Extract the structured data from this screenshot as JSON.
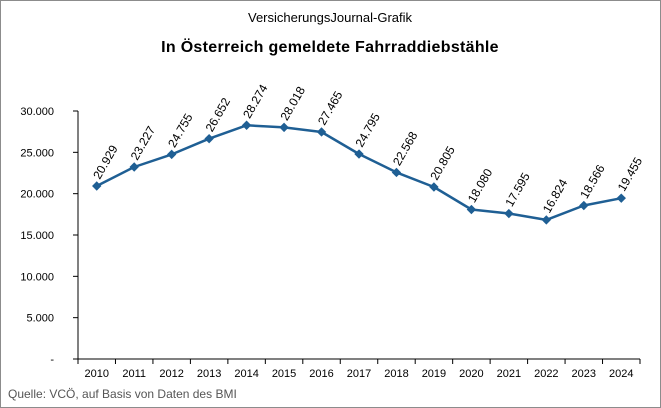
{
  "supertitle": "VersicherungsJournal-Grafik",
  "source": "Quelle: VCÖ, auf Basis von Daten des BMI",
  "colors": {
    "line": "#1f5f94",
    "axis": "#000000",
    "frame": "#8c8c8c"
  },
  "chart_data": {
    "type": "line",
    "title": "In Österreich gemeldete  Fahrraddiebstähle",
    "xlabel": "",
    "ylabel": "",
    "grid": false,
    "legend": "none",
    "ylim": [
      0,
      30000
    ],
    "y_ticks": [
      0,
      5000,
      10000,
      15000,
      20000,
      25000,
      30000
    ],
    "y_tick_labels": [
      "-",
      "5.000",
      "10.000",
      "15.000",
      "20.000",
      "25.000",
      "30.000"
    ],
    "categories": [
      "2010",
      "2011",
      "2012",
      "2013",
      "2014",
      "2015",
      "2016",
      "2017",
      "2018",
      "2019",
      "2020",
      "2021",
      "2022",
      "2023",
      "2024"
    ],
    "values": [
      20929,
      23227,
      24755,
      26652,
      28274,
      28018,
      27465,
      24795,
      22568,
      20805,
      18080,
      17595,
      16824,
      18566,
      19455
    ],
    "data_labels": [
      "20.929",
      "23.227",
      "24.755",
      "26.652",
      "28.274",
      "28.018",
      "27.465",
      "24.795",
      "22.568",
      "20.805",
      "18.080",
      "17.595",
      "16.824",
      "18.566",
      "19.455"
    ],
    "marker": "diamond"
  }
}
